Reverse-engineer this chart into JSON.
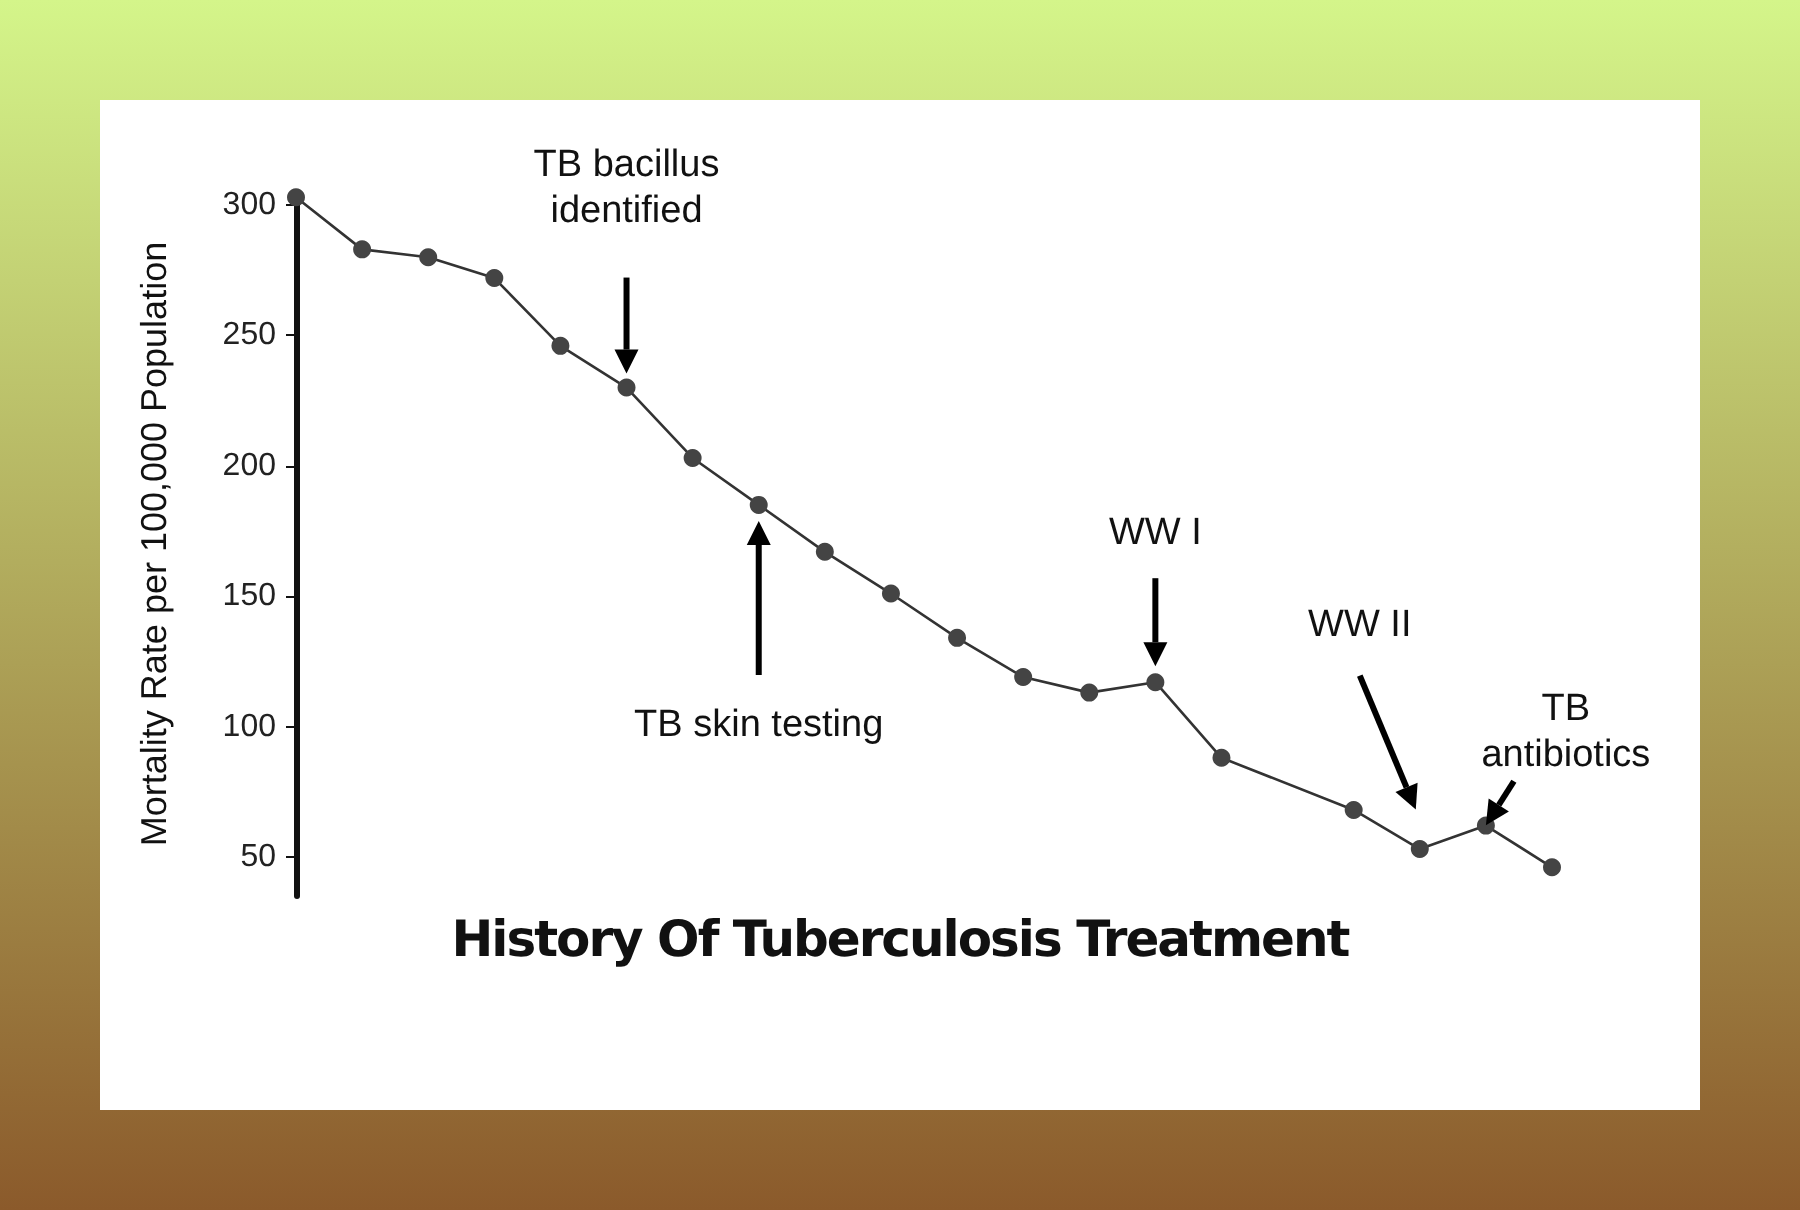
{
  "chart_data": {
    "type": "line",
    "title": "History Of Tuberculosis Treatment",
    "ylabel": "Mortality Rate per 100,000 Population",
    "categories": [
      null,
      null,
      null,
      null,
      null,
      null,
      null,
      null,
      null,
      null,
      null,
      null,
      null,
      null,
      null,
      null,
      null,
      null,
      null,
      null
    ],
    "series": [
      {
        "color": "#333333",
        "values": [
          303,
          283,
          280,
          272,
          246,
          230,
          203,
          185,
          167,
          151,
          134,
          119,
          113,
          117,
          88,
          null,
          68,
          53,
          62,
          46
        ]
      }
    ],
    "ylim": [
      35,
      305
    ],
    "yticks": [
      50,
      100,
      150,
      200,
      250,
      300
    ],
    "tick_labels": "y",
    "grid": false,
    "marker": "circle",
    "line_style": "solid",
    "annotations": [
      "TB bacillus identified",
      "TB skin testing",
      "WW I",
      "WW II",
      "TB antibiotics"
    ]
  }
}
